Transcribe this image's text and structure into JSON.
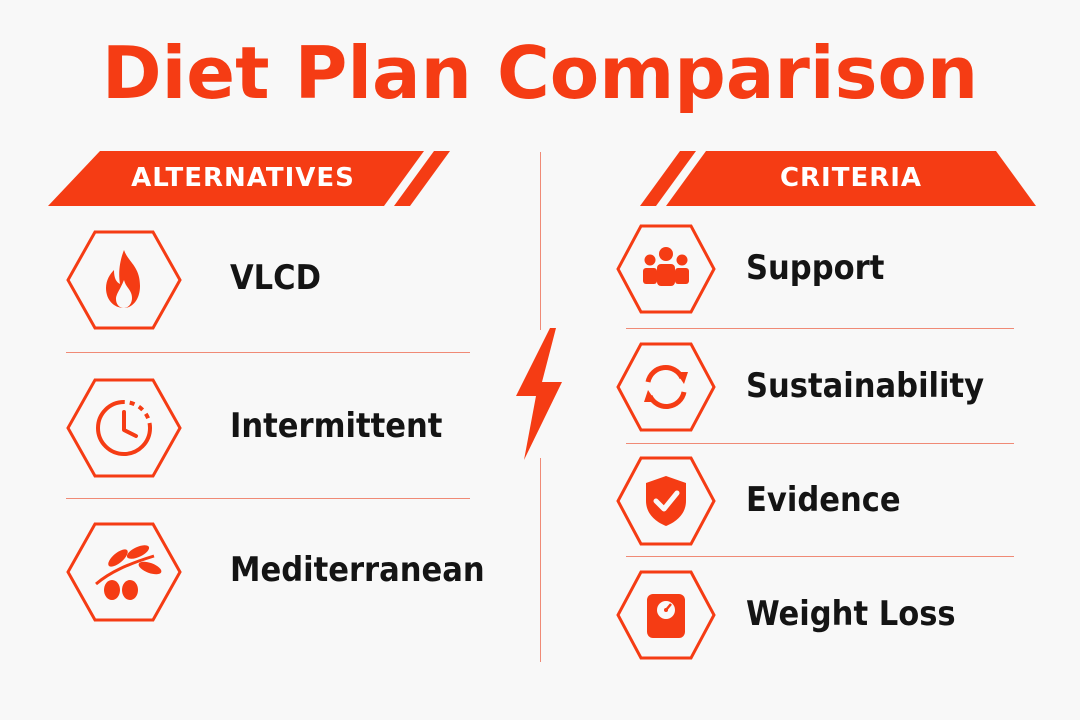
{
  "title": "Diet Plan Comparison",
  "alternatives": {
    "header": "ALTERNATIVES",
    "items": [
      {
        "label": "VLCD",
        "icon": "flame-icon"
      },
      {
        "label": "Intermittent",
        "icon": "clock-icon"
      },
      {
        "label": "Mediterranean",
        "icon": "olive-branch-icon"
      }
    ]
  },
  "criteria": {
    "header": "CRITERIA",
    "items": [
      {
        "label": "Support",
        "icon": "group-people-icon"
      },
      {
        "label": "Sustainability",
        "icon": "refresh-cycle-icon"
      },
      {
        "label": "Evidence",
        "icon": "shield-check-icon"
      },
      {
        "label": "Weight Loss",
        "icon": "scale-icon"
      }
    ]
  },
  "colors": {
    "accent": "#f53c14",
    "divider": "#f08a76",
    "text": "#141414",
    "background": "#f8f8f8"
  }
}
